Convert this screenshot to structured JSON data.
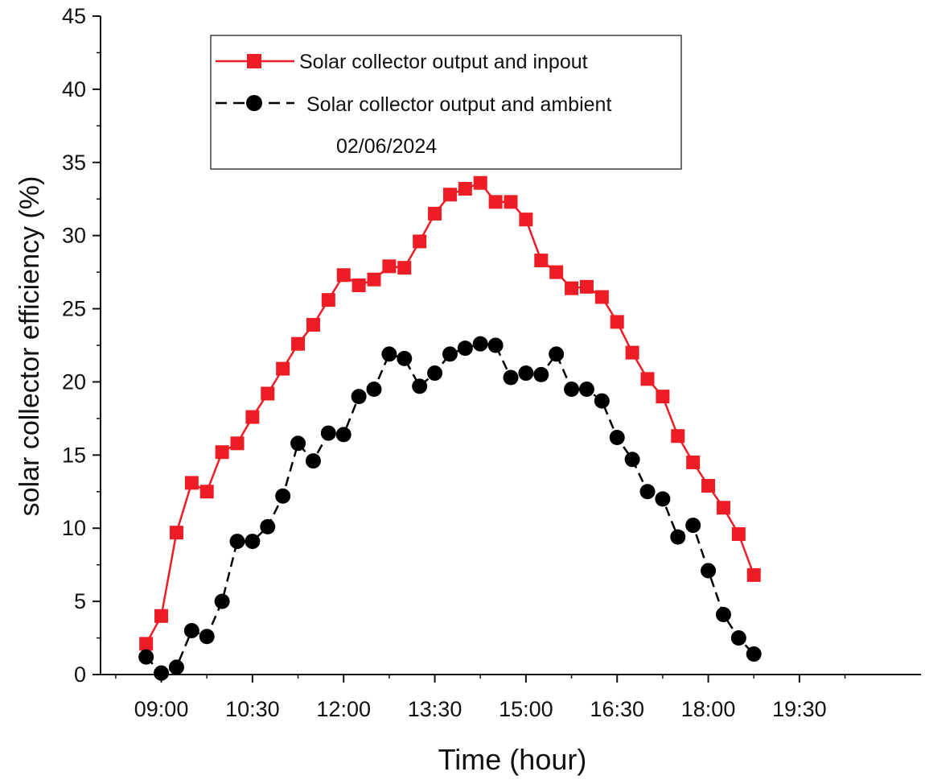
{
  "chart_data": {
    "type": "line",
    "xlabel": "Time (hour)",
    "ylabel": "solar collector efficiency (%)",
    "annotation": "02/06/2024",
    "xlim": [
      8.0,
      21.5
    ],
    "ylim": [
      0,
      45
    ],
    "x_ticks": [
      {
        "value": 9.0,
        "label": "09:00"
      },
      {
        "value": 10.5,
        "label": "10:30"
      },
      {
        "value": 12.0,
        "label": "12:00"
      },
      {
        "value": 13.5,
        "label": "13:30"
      },
      {
        "value": 15.0,
        "label": "15:00"
      },
      {
        "value": 16.5,
        "label": "16:30"
      },
      {
        "value": 18.0,
        "label": "18:00"
      },
      {
        "value": 19.5,
        "label": "19:30"
      }
    ],
    "y_ticks": [
      0,
      5,
      10,
      15,
      20,
      25,
      30,
      35,
      40,
      45
    ],
    "legend_position": "top-center",
    "series": [
      {
        "name": "Solar collector output and inpout",
        "color": "#ee1c24",
        "marker": "square",
        "line": "solid",
        "x": [
          8.75,
          9.0,
          9.25,
          9.5,
          9.75,
          10.0,
          10.25,
          10.5,
          10.75,
          11.0,
          11.25,
          11.5,
          11.75,
          12.0,
          12.25,
          12.5,
          12.75,
          13.0,
          13.25,
          13.5,
          13.75,
          14.0,
          14.25,
          14.5,
          14.75,
          15.0,
          15.25,
          15.5,
          15.75,
          16.0,
          16.25,
          16.5,
          16.75,
          17.0,
          17.25,
          17.5,
          17.75,
          18.0,
          18.25,
          18.5,
          18.75
        ],
        "values": [
          2.1,
          4.0,
          9.7,
          13.1,
          12.5,
          15.2,
          15.8,
          17.6,
          19.2,
          20.9,
          22.6,
          23.9,
          25.6,
          27.3,
          26.6,
          27.0,
          27.9,
          27.8,
          29.6,
          31.5,
          32.8,
          33.2,
          33.6,
          32.3,
          32.3,
          31.1,
          28.3,
          27.5,
          26.4,
          26.5,
          25.8,
          24.1,
          22.0,
          20.2,
          19.0,
          16.3,
          14.5,
          12.9,
          11.4,
          9.6,
          6.8
        ]
      },
      {
        "name": "Solar collector output and ambient",
        "color": "#000000",
        "marker": "circle",
        "line": "dashed",
        "x": [
          8.75,
          9.0,
          9.25,
          9.5,
          9.75,
          10.0,
          10.25,
          10.5,
          10.75,
          11.0,
          11.25,
          11.5,
          11.75,
          12.0,
          12.25,
          12.5,
          12.75,
          13.0,
          13.25,
          13.5,
          13.75,
          14.0,
          14.25,
          14.5,
          14.75,
          15.0,
          15.25,
          15.5,
          15.75,
          16.0,
          16.25,
          16.5,
          16.75,
          17.0,
          17.25,
          17.5,
          17.75,
          18.0,
          18.25,
          18.5,
          18.75
        ],
        "values": [
          1.2,
          0.1,
          0.5,
          3.0,
          2.6,
          5.0,
          9.1,
          9.1,
          10.1,
          12.2,
          15.8,
          14.6,
          16.5,
          16.4,
          19.0,
          19.5,
          21.9,
          21.6,
          19.7,
          20.6,
          21.9,
          22.3,
          22.6,
          22.5,
          20.3,
          20.6,
          20.5,
          21.9,
          19.5,
          19.5,
          18.7,
          16.2,
          14.7,
          12.5,
          12.0,
          9.4,
          10.2,
          7.1,
          4.1,
          2.5,
          1.4
        ]
      }
    ]
  }
}
